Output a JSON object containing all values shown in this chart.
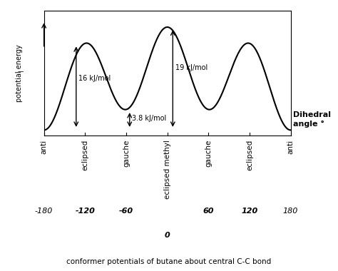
{
  "title": "conformer potentials of butane about central C-C bond",
  "ylabel": "potential energy",
  "xlabel_label": "Dihedral\nangle °",
  "x_ticks": [
    -180,
    -120,
    -60,
    0,
    60,
    120,
    180
  ],
  "x_tick_labels": [
    "-180",
    "-120",
    "-60",
    "0",
    "60",
    "120",
    "180"
  ],
  "x_conformation_labels": [
    "anti",
    "eclipsed",
    "gauche",
    "eclipsed methyl",
    "gauche",
    "eclipsed",
    "anti"
  ],
  "x_conformation_positions": [
    -180,
    -120,
    -60,
    0,
    60,
    120,
    180
  ],
  "energy_anti": 0.0,
  "energy_gauche": 3.8,
  "energy_eclipsed": 16.0,
  "energy_eclipsed_methyl": 19.0,
  "arrow_16_label": "16 kJ/mol",
  "arrow_38_label": "3.8 kJ/mol",
  "arrow_19_label": "19 kJ/mol",
  "line_color": "#000000",
  "background_color": "#ffffff",
  "plot_bg_color": "#ffffff",
  "ylim": [
    -1,
    22
  ],
  "xlim": [
    -180,
    180
  ]
}
